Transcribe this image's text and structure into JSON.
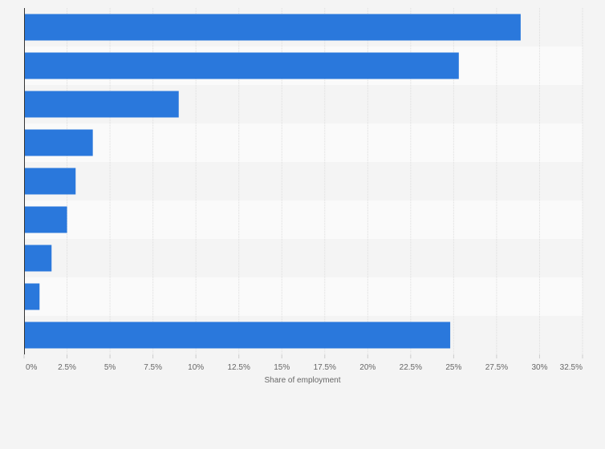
{
  "chart_data": {
    "type": "bar",
    "orientation": "horizontal",
    "title": "",
    "categories": [
      "",
      "",
      "",
      "",
      "",
      "",
      "",
      "",
      ""
    ],
    "values": [
      28.9,
      25.3,
      9.0,
      4.0,
      3.0,
      2.5,
      1.6,
      0.9,
      24.8
    ],
    "xlabel": "Share of employment",
    "ylabel": "",
    "xlim": [
      0,
      32.5
    ],
    "xticks": [
      0,
      2.5,
      5,
      7.5,
      10,
      12.5,
      15,
      17.5,
      20,
      22.5,
      25,
      27.5,
      30,
      32.5
    ],
    "xtick_labels": [
      "0%",
      "2.5%",
      "5%",
      "7.5%",
      "10%",
      "12.5%",
      "15%",
      "17.5%",
      "20%",
      "22.5%",
      "25%",
      "27.5%",
      "30%",
      "32.5%"
    ],
    "grid": true,
    "legend": "none",
    "bar_color": "#2a78dc",
    "band_colors": [
      "#f4f4f4",
      "#fafafa"
    ]
  }
}
